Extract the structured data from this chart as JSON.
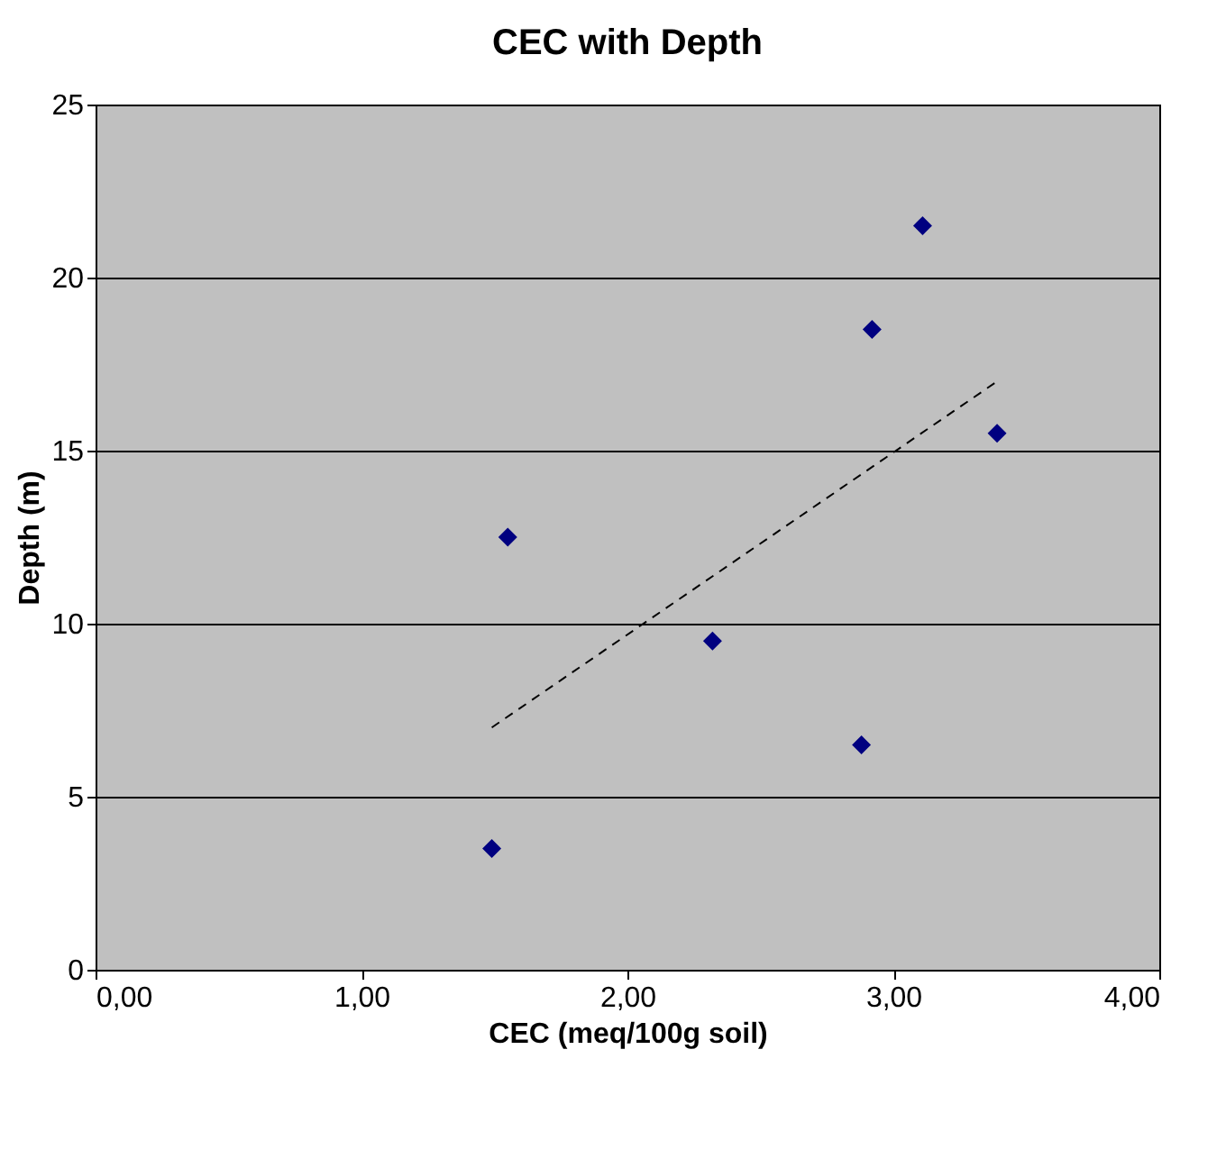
{
  "chart_data": {
    "type": "scatter",
    "title": "CEC with Depth",
    "xlabel": "CEC (meq/100g soil)",
    "ylabel": "Depth (m)",
    "series": [
      {
        "color": "#000080",
        "marker": "diamond",
        "x": [
          1.49,
          1.55,
          2.32,
          2.88,
          2.92,
          3.11,
          3.39
        ],
        "values": [
          3.5,
          12.5,
          9.5,
          6.5,
          18.5,
          21.5,
          15.5
        ]
      },
      {
        "type": "line",
        "color": "#000000",
        "line_style": "dashed",
        "x": [
          1.49,
          3.39
        ],
        "values": [
          7.0,
          17.0
        ]
      }
    ],
    "xlim": [
      0,
      4
    ],
    "ylim": [
      0,
      25
    ],
    "xticks": [
      {
        "value": 0,
        "label": "0,00"
      },
      {
        "value": 1,
        "label": "1,00"
      },
      {
        "value": 2,
        "label": "2,00"
      },
      {
        "value": 3,
        "label": "3,00"
      },
      {
        "value": 4,
        "label": "4,00"
      }
    ],
    "yticks": [
      0,
      5,
      10,
      15,
      20,
      25
    ],
    "grid": "y"
  }
}
